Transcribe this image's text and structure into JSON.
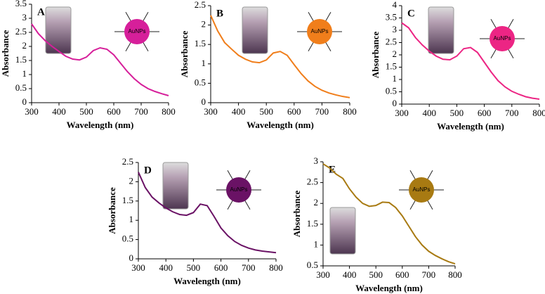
{
  "chart_data": [
    {
      "type": "line",
      "panel_label": "A",
      "x_label": "Wavelength (nm)",
      "y_label": "Absorbance",
      "particle_label": "AuNPs",
      "x": [
        300,
        325,
        350,
        375,
        400,
        425,
        450,
        475,
        500,
        525,
        550,
        575,
        600,
        625,
        650,
        675,
        700,
        725,
        750,
        775,
        800
      ],
      "series": [
        {
          "color": "#d61f9a",
          "values": [
            2.8,
            2.45,
            2.2,
            2.0,
            1.82,
            1.65,
            1.55,
            1.52,
            1.62,
            1.85,
            1.95,
            1.9,
            1.7,
            1.4,
            1.1,
            0.85,
            0.65,
            0.5,
            0.4,
            0.32,
            0.25
          ]
        }
      ],
      "xlim": [
        300,
        800
      ],
      "xticks": [
        300,
        400,
        500,
        600,
        700,
        800
      ],
      "ylim": [
        0,
        3.5
      ],
      "yticks": [
        0,
        0.5,
        1,
        1.5,
        2,
        2.5,
        3,
        3.5
      ]
    },
    {
      "type": "line",
      "panel_label": "B",
      "x_label": "Wavelength (nm)",
      "y_label": "Absorbance",
      "particle_label": "AuNPs",
      "x": [
        300,
        325,
        350,
        375,
        400,
        425,
        450,
        475,
        500,
        525,
        550,
        575,
        600,
        625,
        650,
        675,
        700,
        725,
        750,
        775,
        800
      ],
      "series": [
        {
          "color": "#f07e1b",
          "values": [
            2.25,
            1.85,
            1.55,
            1.38,
            1.22,
            1.12,
            1.05,
            1.03,
            1.1,
            1.28,
            1.32,
            1.22,
            0.98,
            0.75,
            0.56,
            0.42,
            0.32,
            0.25,
            0.2,
            0.16,
            0.13
          ]
        }
      ],
      "xlim": [
        300,
        800
      ],
      "xticks": [
        300,
        400,
        500,
        600,
        700,
        800
      ],
      "ylim": [
        0,
        2.5
      ],
      "yticks": [
        0,
        0.5,
        1,
        1.5,
        2,
        2.5
      ]
    },
    {
      "type": "line",
      "panel_label": "C",
      "x_label": "Wavelength (nm)",
      "y_label": "Absorbance",
      "particle_label": "AuNPs",
      "x": [
        300,
        325,
        350,
        375,
        400,
        425,
        450,
        475,
        500,
        525,
        550,
        575,
        600,
        625,
        650,
        675,
        700,
        725,
        750,
        775,
        800
      ],
      "series": [
        {
          "color": "#ec2584",
          "values": [
            3.3,
            3.1,
            2.7,
            2.4,
            2.15,
            1.95,
            1.82,
            1.8,
            1.95,
            2.25,
            2.3,
            2.1,
            1.7,
            1.3,
            0.95,
            0.7,
            0.52,
            0.4,
            0.3,
            0.24,
            0.2
          ]
        }
      ],
      "xlim": [
        300,
        800
      ],
      "xticks": [
        300,
        400,
        500,
        600,
        700,
        800
      ],
      "ylim": [
        0,
        4
      ],
      "yticks": [
        0,
        0.5,
        1,
        1.5,
        2,
        2.5,
        3,
        3.5,
        4
      ]
    },
    {
      "type": "line",
      "panel_label": "D",
      "x_label": "Wavelength (nm)",
      "y_label": "Absorbance",
      "particle_label": "AuNPs",
      "x": [
        300,
        325,
        350,
        375,
        400,
        425,
        450,
        475,
        500,
        525,
        550,
        575,
        600,
        625,
        650,
        675,
        700,
        725,
        750,
        775,
        800
      ],
      "series": [
        {
          "color": "#6a1265",
          "values": [
            2.25,
            1.85,
            1.6,
            1.45,
            1.32,
            1.22,
            1.15,
            1.13,
            1.2,
            1.42,
            1.38,
            1.1,
            0.8,
            0.6,
            0.45,
            0.35,
            0.28,
            0.23,
            0.2,
            0.18,
            0.16
          ]
        }
      ],
      "xlim": [
        300,
        800
      ],
      "xticks": [
        300,
        400,
        500,
        600,
        700,
        800
      ],
      "ylim": [
        0,
        2.5
      ],
      "yticks": [
        0,
        0.5,
        1,
        1.5,
        2,
        2.5
      ]
    },
    {
      "type": "line",
      "panel_label": "E",
      "x_label": "Wavelength (nm)",
      "y_label": "Absorbance",
      "particle_label": "AuNPs",
      "x": [
        300,
        325,
        350,
        375,
        400,
        425,
        450,
        475,
        500,
        525,
        550,
        575,
        600,
        625,
        650,
        675,
        700,
        725,
        750,
        775,
        800
      ],
      "series": [
        {
          "color": "#a87a12",
          "values": [
            2.95,
            2.85,
            2.7,
            2.6,
            2.35,
            2.15,
            2.0,
            1.93,
            1.95,
            2.03,
            2.02,
            1.9,
            1.7,
            1.45,
            1.2,
            1.0,
            0.85,
            0.75,
            0.67,
            0.6,
            0.55
          ]
        }
      ],
      "xlim": [
        300,
        800
      ],
      "xticks": [
        300,
        400,
        500,
        600,
        700,
        800
      ],
      "ylim": [
        0.5,
        3
      ],
      "yticks": [
        0.5,
        1,
        1.5,
        2,
        2.5,
        3
      ]
    }
  ]
}
